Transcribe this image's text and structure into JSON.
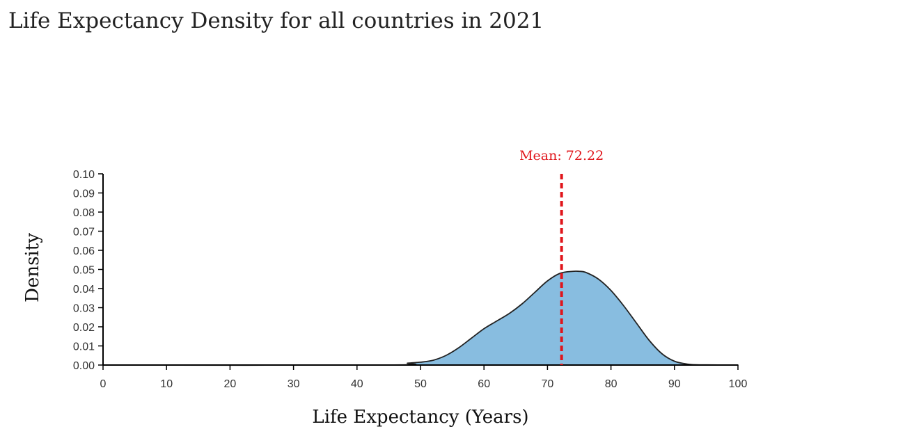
{
  "page": {
    "title": "Life Expectancy Density for all countries in 2021"
  },
  "chart_data": {
    "type": "area",
    "title": "Life Expectancy Density for all countries in 2021",
    "xlabel": "Life Expectancy (Years)",
    "ylabel": "Density",
    "xlim": [
      0,
      100
    ],
    "ylim": [
      0,
      0.1
    ],
    "x_ticks": [
      0,
      10,
      20,
      30,
      40,
      50,
      60,
      70,
      80,
      90,
      100
    ],
    "y_ticks": [
      0.0,
      0.01,
      0.02,
      0.03,
      0.04,
      0.05,
      0.06,
      0.07,
      0.08,
      0.09,
      0.1
    ],
    "y_tick_labels": [
      "0.00",
      "0.01",
      "0.02",
      "0.03",
      "0.04",
      "0.05",
      "0.06",
      "0.07",
      "0.08",
      "0.09",
      "0.10"
    ],
    "grid": false,
    "series": [
      {
        "name": "density",
        "x": [
          0,
          45,
          48,
          50,
          52,
          54,
          56,
          58,
          60,
          62,
          64,
          66,
          68,
          70,
          72,
          74,
          75,
          76,
          78,
          80,
          82,
          84,
          86,
          88,
          90,
          92,
          94,
          100
        ],
        "y": [
          0.0,
          0.0,
          0.001,
          0.0015,
          0.0025,
          0.005,
          0.009,
          0.014,
          0.019,
          0.023,
          0.027,
          0.032,
          0.038,
          0.044,
          0.048,
          0.049,
          0.049,
          0.0485,
          0.045,
          0.039,
          0.031,
          0.022,
          0.013,
          0.006,
          0.002,
          0.0005,
          0.0001,
          0.0
        ]
      }
    ],
    "mean": {
      "value": 72.22,
      "label": "Mean: 72.22"
    },
    "colors": {
      "fill": "#88bde0",
      "stroke": "#222222",
      "mean_line": "#e0151b"
    }
  }
}
